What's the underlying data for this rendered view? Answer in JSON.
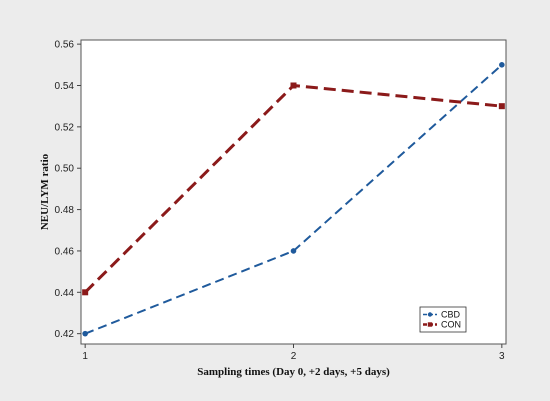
{
  "chart_data": {
    "type": "line",
    "title": "",
    "xlabel": "Sampling times (Day 0, +2 days, +5 days)",
    "ylabel": "NEU/LYM ratio",
    "x": [
      1,
      2,
      3
    ],
    "x_tick_labels": [
      "1",
      "2",
      "3"
    ],
    "xlim": [
      0.98,
      3.02
    ],
    "ylim": [
      0.415,
      0.562
    ],
    "y_ticks": [
      0.42,
      0.44,
      0.46,
      0.48,
      0.5,
      0.52,
      0.54,
      0.56
    ],
    "y_tick_labels": [
      "0.42",
      "0.44",
      "0.46",
      "0.48",
      "0.50",
      "0.52",
      "0.54",
      "0.56"
    ],
    "grid": false,
    "legend_position": "bottom-right",
    "series": [
      {
        "name": "CBD",
        "values": [
          0.42,
          0.46,
          0.55
        ],
        "color": "#1f5a9c",
        "marker": "circle",
        "line_style": "dashed"
      },
      {
        "name": "CON",
        "values": [
          0.44,
          0.54,
          0.53
        ],
        "color": "#8b1a1a",
        "marker": "square",
        "line_style": "dashed"
      }
    ],
    "colors": {
      "outer_background": "#ececec",
      "plot_background": "#ffffff"
    }
  }
}
